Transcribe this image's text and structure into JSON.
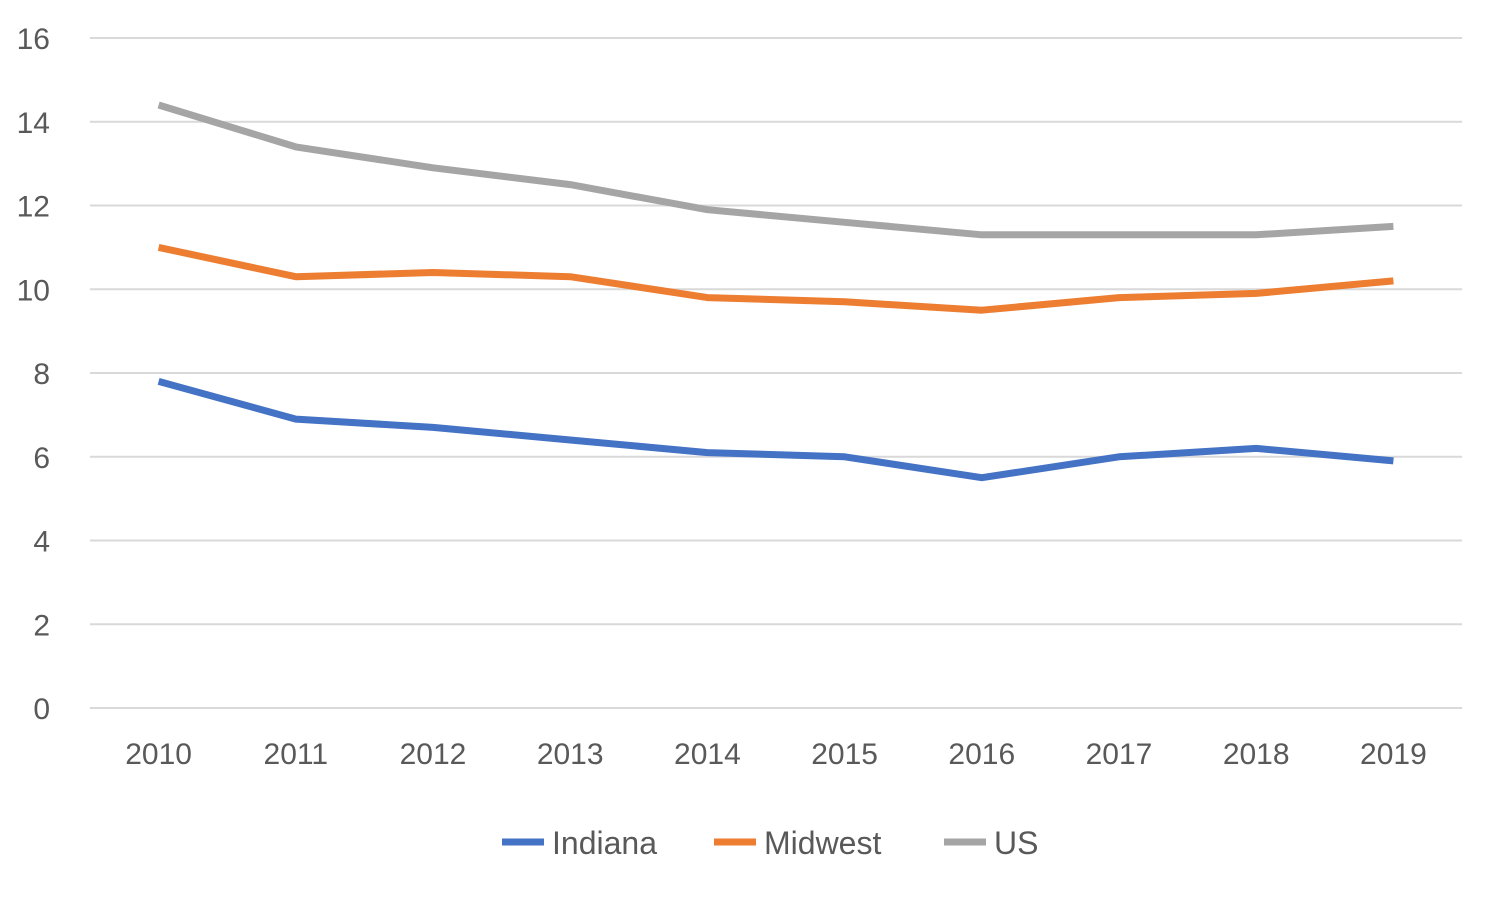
{
  "chart_data": {
    "type": "line",
    "categories": [
      "2010",
      "2011",
      "2012",
      "2013",
      "2014",
      "2015",
      "2016",
      "2017",
      "2018",
      "2019"
    ],
    "series": [
      {
        "name": "Indiana",
        "color": "#4472c4",
        "values": [
          7.8,
          6.9,
          6.7,
          6.4,
          6.1,
          6.0,
          5.5,
          6.0,
          6.2,
          5.9
        ]
      },
      {
        "name": "Midwest",
        "color": "#ed7d31",
        "values": [
          11.0,
          10.3,
          10.4,
          10.3,
          9.8,
          9.7,
          9.5,
          9.8,
          9.9,
          10.2
        ]
      },
      {
        "name": "US",
        "color": "#a5a5a5",
        "values": [
          14.4,
          13.4,
          12.9,
          12.5,
          11.9,
          11.6,
          11.3,
          11.3,
          11.3,
          11.5
        ]
      }
    ],
    "yticks": [
      "0",
      "2",
      "4",
      "6",
      "8",
      "10",
      "12",
      "14",
      "16"
    ],
    "ylim": [
      0,
      16
    ],
    "grid": true,
    "legend_position": "bottom",
    "title": "",
    "xlabel": "",
    "ylabel": ""
  }
}
